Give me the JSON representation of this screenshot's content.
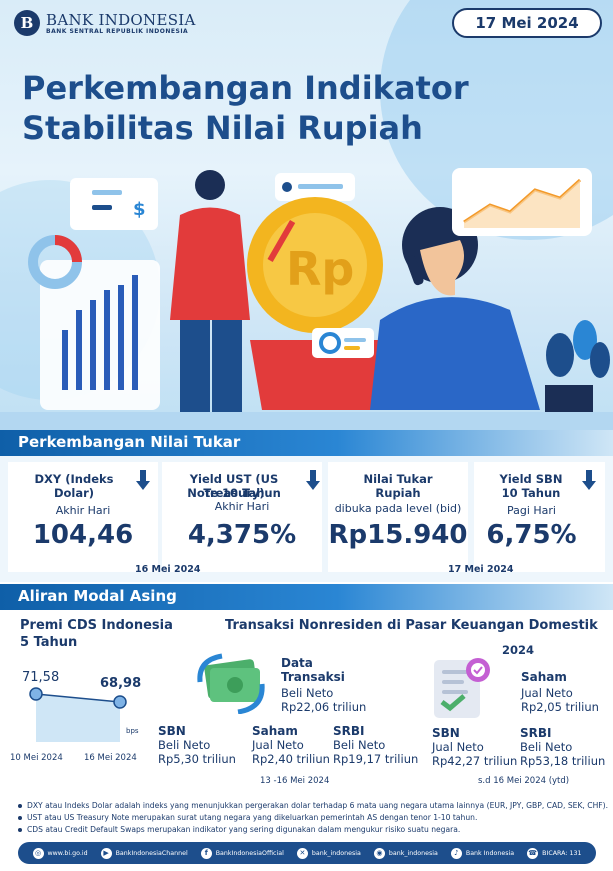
{
  "header": {
    "logo_name": "BANK INDONESIA",
    "logo_sub": "BANK SENTRAL REPUBLIK INDONESIA",
    "date": "17 Mei 2024",
    "title_line1": "Perkembangan Indikator",
    "title_line2": "Stabilitas Nilai Rupiah"
  },
  "exchange": {
    "section_title": "Perkembangan Nilai Tukar",
    "dxy": {
      "label": "DXY (Indeks Dolar)",
      "sub": "Akhir Hari",
      "value": "104,46"
    },
    "ust": {
      "label_line1": "Yield UST (US Treasury)",
      "label_line2": "Note  10 Tahun",
      "sub": "Akhir Hari",
      "value": "4,375%"
    },
    "rupiah": {
      "label_line1": "Nilai Tukar",
      "label_line2": "Rupiah",
      "sub": "dibuka pada level (bid)",
      "value": "Rp15.940"
    },
    "sbn": {
      "label_line1": "Yield SBN",
      "label_line2": "10 Tahun",
      "sub": "Pagi Hari",
      "value": "6,75%"
    },
    "date_left": "16 Mei 2024",
    "date_right": "17 Mei 2024"
  },
  "capital": {
    "section_title": "Aliran Modal Asing",
    "cds": {
      "title_line1": "Premi CDS Indonesia",
      "title_line2": "5 Tahun",
      "value_start": "71,58",
      "value_end": "68,98",
      "unit": "bps",
      "date_start": "10 Mei 2024",
      "date_end": "16 Mei 2024"
    },
    "transactions": {
      "title": "Transaksi Nonresiden di Pasar Keuangan Domestik",
      "data_title_line1": "Data",
      "data_title_line2": "Transaksi",
      "total_label": "Beli Neto",
      "total_value": "Rp22,06 triliun",
      "sbn": {
        "name": "SBN",
        "label": "Beli Neto",
        "value": "Rp5,30 triliun"
      },
      "saham": {
        "name": "Saham",
        "label": "Jual Neto",
        "value": "Rp2,40 triliun"
      },
      "srbi": {
        "name": "SRBI",
        "label": "Beli Neto",
        "value": "Rp19,17 triliun"
      },
      "period": "13 -16 Mei 2024"
    },
    "ytd": {
      "year": "2024",
      "saham": {
        "name": "Saham",
        "label": "Jual Neto",
        "value": "Rp2,05 triliun"
      },
      "sbn": {
        "name": "SBN",
        "label": "Jual Neto",
        "value": "Rp42,27 triliun"
      },
      "srbi": {
        "name": "SRBI",
        "label": "Beli Neto",
        "value": "Rp53,18 triliun"
      },
      "period": "s.d 16 Mei 2024 (ytd)"
    }
  },
  "notes": [
    "DXY atau Indeks Dolar adalah indeks yang menunjukkan pergerakan dolar terhadap 6 mata uang negara utama lainnya (EUR, JPY, GBP, CAD, SEK, CHF).",
    "UST atau US Treasury Note merupakan surat utang negara yang dikeluarkan  pemerintah AS dengan tenor 1-10 tahun.",
    "CDS atau Credit Default Swaps merupakan indikator  yang sering digunakan dalam mengukur risiko suatu negara."
  ],
  "footer": [
    {
      "icon": "globe-icon",
      "text": "www.bi.go.id"
    },
    {
      "icon": "youtube-icon",
      "text": "BankIndonesiaChannel"
    },
    {
      "icon": "facebook-icon",
      "text": "BankIndonesiaOfficial"
    },
    {
      "icon": "x-icon",
      "text": "bank_indonesia"
    },
    {
      "icon": "instagram-icon",
      "text": "bank_indonesia"
    },
    {
      "icon": "tiktok-icon",
      "text": "Bank Indonesia"
    },
    {
      "icon": "phone-icon",
      "text": "BICARA: 131"
    }
  ],
  "colors": {
    "primary": "#1b3a6b",
    "accent": "#2a86d4",
    "down_arrow": "#1d4e8c"
  }
}
